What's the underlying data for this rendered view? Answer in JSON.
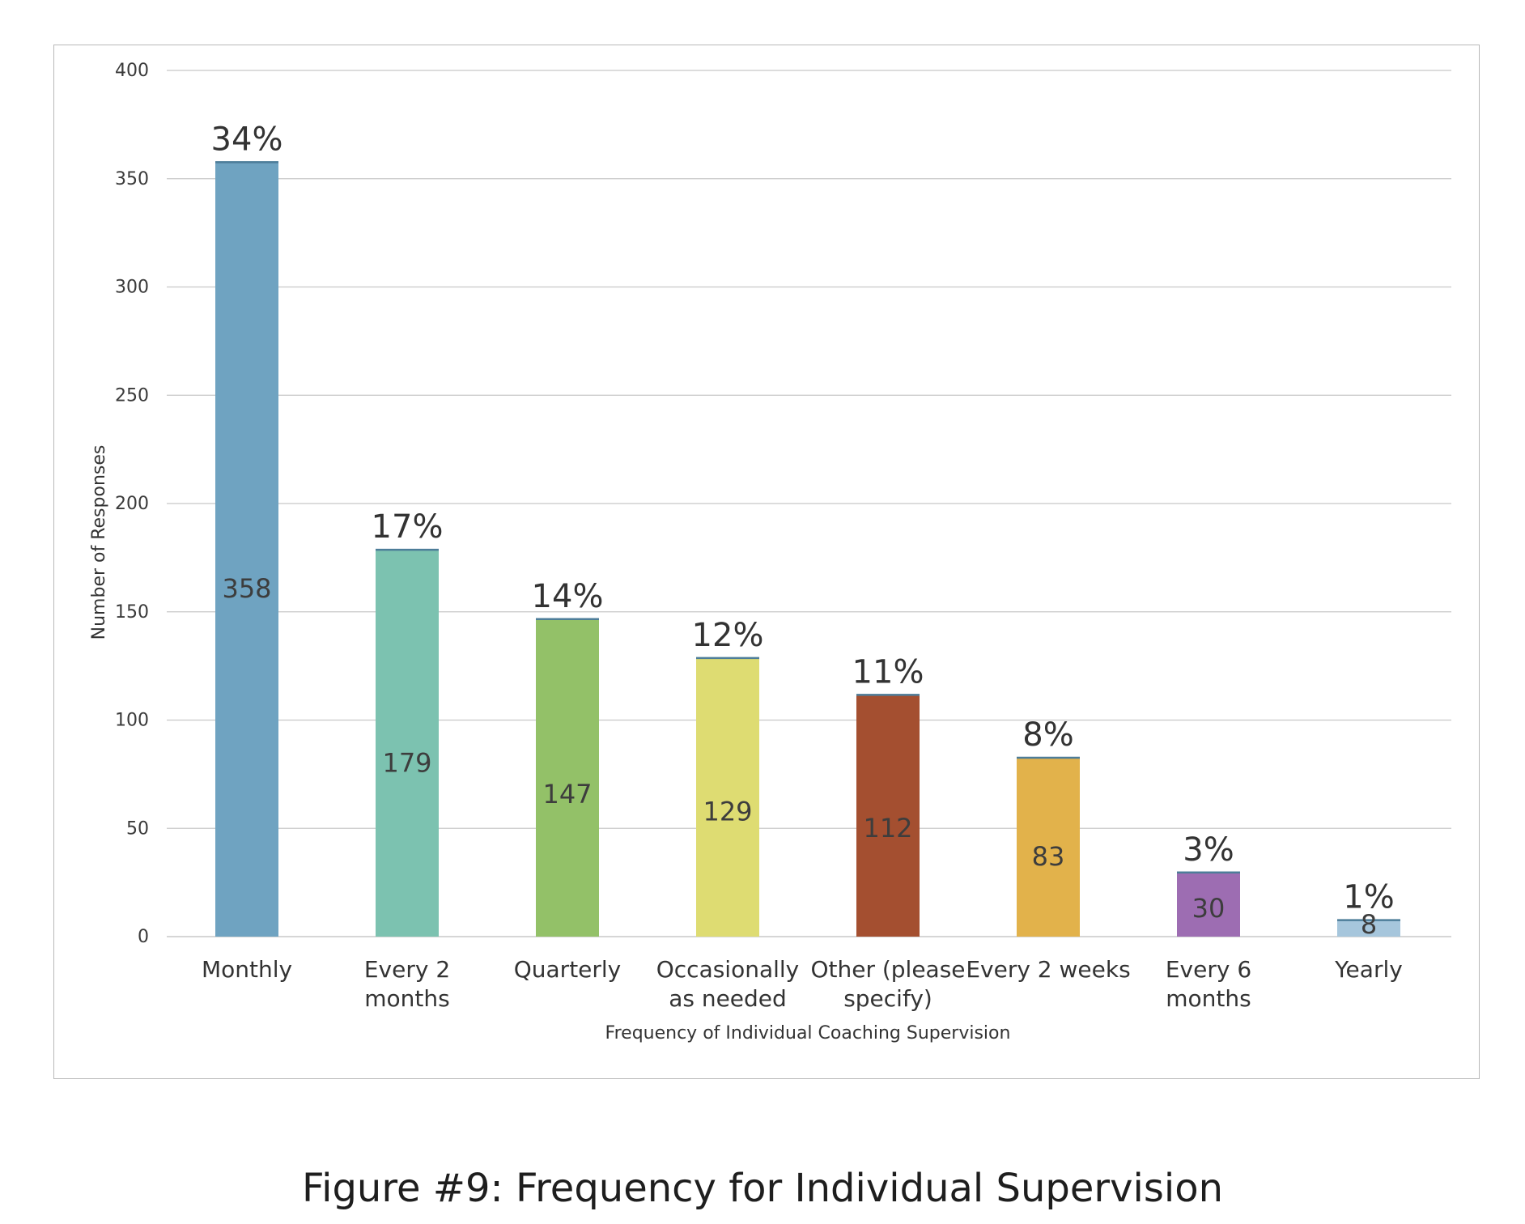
{
  "chart_data": {
    "type": "bar",
    "xlabel": "Frequency of Individual Coaching Supervision",
    "ylabel": "Number of Responses",
    "ylim": [
      0,
      400
    ],
    "yticks": [
      0,
      50,
      100,
      150,
      200,
      250,
      300,
      350,
      400
    ],
    "grid": true,
    "categories": [
      [
        "Monthly"
      ],
      [
        "Every 2",
        "months"
      ],
      [
        "Quarterly"
      ],
      [
        "Occasionally",
        "as needed"
      ],
      [
        "Other (please",
        "specify)"
      ],
      [
        "Every 2 weeks"
      ],
      [
        "Every 6",
        "months"
      ],
      [
        "Yearly"
      ]
    ],
    "values": [
      358,
      179,
      147,
      129,
      112,
      83,
      30,
      8
    ],
    "percent_labels": [
      "34%",
      "17%",
      "14%",
      "12%",
      "11%",
      "8%",
      "3%",
      "1%"
    ],
    "colors": [
      "#6fa3c1",
      "#7cc2b0",
      "#93c168",
      "#dedc72",
      "#a44f30",
      "#e2b24b",
      "#9d6db2",
      "#a6c6dc"
    ]
  },
  "caption": "Figure #9: Frequency for Individual Supervision"
}
